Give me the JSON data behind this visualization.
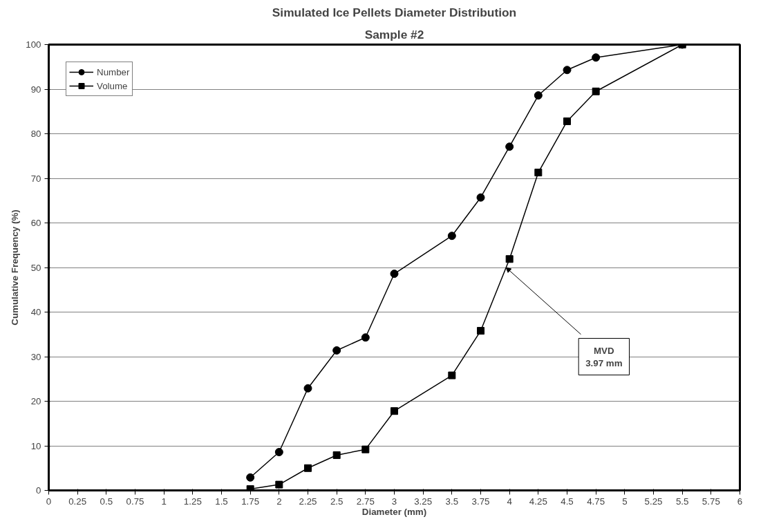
{
  "chart_data": {
    "type": "line",
    "title": "Simulated Ice Pellets Diameter Distribution",
    "subtitle": "Sample #2",
    "xlabel": "Diameter (mm)",
    "ylabel": "Cumulative Frequency (%)",
    "x": [
      1.75,
      2,
      2.25,
      2.5,
      2.75,
      3,
      3.5,
      3.75,
      4,
      4.25,
      4.5,
      4.75,
      5.5
    ],
    "series": [
      {
        "name": "Number",
        "color": "#000000",
        "marker": "circle",
        "values": [
          2.9,
          8.6,
          22.9,
          31.4,
          34.3,
          48.6,
          57.1,
          65.7,
          77.1,
          88.6,
          94.3,
          97.1,
          100
        ]
      },
      {
        "name": "Volume",
        "color": "#000000",
        "marker": "square",
        "values": [
          0.3,
          1.3,
          5.0,
          7.9,
          9.2,
          17.8,
          25.8,
          35.8,
          51.9,
          71.3,
          82.8,
          89.5,
          100
        ]
      }
    ],
    "annotations": [
      {
        "text": "MVD\n3.97 mm",
        "x": 3.97,
        "y": 50
      }
    ],
    "xlim": [
      0,
      6
    ],
    "xticks": [
      0,
      0.25,
      0.5,
      0.75,
      1,
      1.25,
      1.5,
      1.75,
      2,
      2.25,
      2.5,
      2.75,
      3,
      3.25,
      3.5,
      3.75,
      4,
      4.25,
      4.5,
      4.75,
      5,
      5.25,
      5.5,
      5.75,
      6
    ],
    "ylim": [
      0,
      100
    ],
    "yticks": [
      0,
      10,
      20,
      30,
      40,
      50,
      60,
      70,
      80,
      90,
      100
    ],
    "grid": "y",
    "legend": "top left",
    "line_style": "solid"
  }
}
